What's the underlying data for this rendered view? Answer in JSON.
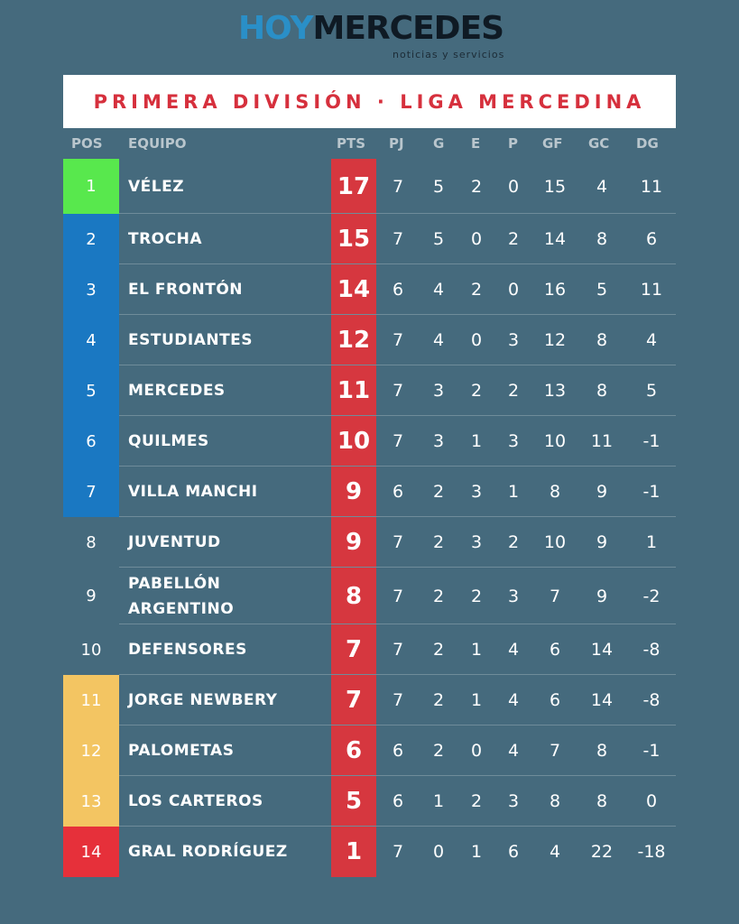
{
  "brand": {
    "hoy": "HOY",
    "mercedes": "MERCEDES",
    "tagline": "noticias y servicios"
  },
  "title": "PRIMERA DIVISIÓN · LIGA MERCEDINA",
  "columns": {
    "pos": "POS",
    "team": "EQUIPO",
    "pts": "PTS",
    "pj": "PJ",
    "g": "G",
    "e": "E",
    "p": "P",
    "gf": "GF",
    "gc": "GC",
    "dg": "DG"
  },
  "zone_colors": {
    "champion": "#58e84d",
    "qualify": "#1a78c2",
    "relegation_playoff": "#f3c562",
    "relegated": "#e6303a",
    "none": "transparent"
  },
  "rows": [
    {
      "pos": "1",
      "team": "VÉLEZ",
      "pts": "17",
      "pj": "7",
      "g": "5",
      "e": "2",
      "p": "0",
      "gf": "15",
      "gc": "4",
      "dg": "11",
      "zone": "champion"
    },
    {
      "pos": "2",
      "team": "TROCHA",
      "pts": "15",
      "pj": "7",
      "g": "5",
      "e": "0",
      "p": "2",
      "gf": "14",
      "gc": "8",
      "dg": "6",
      "zone": "qualify"
    },
    {
      "pos": "3",
      "team": "EL FRONTÓN",
      "pts": "14",
      "pj": "6",
      "g": "4",
      "e": "2",
      "p": "0",
      "gf": "16",
      "gc": "5",
      "dg": "11",
      "zone": "qualify"
    },
    {
      "pos": "4",
      "team": "ESTUDIANTES",
      "pts": "12",
      "pj": "7",
      "g": "4",
      "e": "0",
      "p": "3",
      "gf": "12",
      "gc": "8",
      "dg": "4",
      "zone": "qualify"
    },
    {
      "pos": "5",
      "team": "MERCEDES",
      "pts": "11",
      "pj": "7",
      "g": "3",
      "e": "2",
      "p": "2",
      "gf": "13",
      "gc": "8",
      "dg": "5",
      "zone": "qualify"
    },
    {
      "pos": "6",
      "team": "QUILMES",
      "pts": "10",
      "pj": "7",
      "g": "3",
      "e": "1",
      "p": "3",
      "gf": "10",
      "gc": "11",
      "dg": "-1",
      "zone": "qualify"
    },
    {
      "pos": "7",
      "team": "VILLA MANCHI",
      "pts": "9",
      "pj": "6",
      "g": "2",
      "e": "3",
      "p": "1",
      "gf": "8",
      "gc": "9",
      "dg": "-1",
      "zone": "qualify"
    },
    {
      "pos": "8",
      "team": "JUVENTUD",
      "pts": "9",
      "pj": "7",
      "g": "2",
      "e": "3",
      "p": "2",
      "gf": "10",
      "gc": "9",
      "dg": "1",
      "zone": "none"
    },
    {
      "pos": "9",
      "team": "PABELLÓN ARGENTINO",
      "pts": "8",
      "pj": "7",
      "g": "2",
      "e": "2",
      "p": "3",
      "gf": "7",
      "gc": "9",
      "dg": "-2",
      "zone": "none"
    },
    {
      "pos": "10",
      "team": "DEFENSORES",
      "pts": "7",
      "pj": "7",
      "g": "2",
      "e": "1",
      "p": "4",
      "gf": "6",
      "gc": "14",
      "dg": "-8",
      "zone": "none"
    },
    {
      "pos": "11",
      "team": "JORGE NEWBERY",
      "pts": "7",
      "pj": "7",
      "g": "2",
      "e": "1",
      "p": "4",
      "gf": "6",
      "gc": "14",
      "dg": "-8",
      "zone": "relegation_playoff"
    },
    {
      "pos": "12",
      "team": "PALOMETAS",
      "pts": "6",
      "pj": "6",
      "g": "2",
      "e": "0",
      "p": "4",
      "gf": "7",
      "gc": "8",
      "dg": "-1",
      "zone": "relegation_playoff"
    },
    {
      "pos": "13",
      "team": "LOS CARTEROS",
      "pts": "5",
      "pj": "6",
      "g": "1",
      "e": "2",
      "p": "3",
      "gf": "8",
      "gc": "8",
      "dg": "0",
      "zone": "relegation_playoff"
    },
    {
      "pos": "14",
      "team": "GRAL RODRÍGUEZ",
      "pts": "1",
      "pj": "7",
      "g": "0",
      "e": "1",
      "p": "6",
      "gf": "4",
      "gc": "22",
      "dg": "-18",
      "zone": "relegated"
    }
  ]
}
